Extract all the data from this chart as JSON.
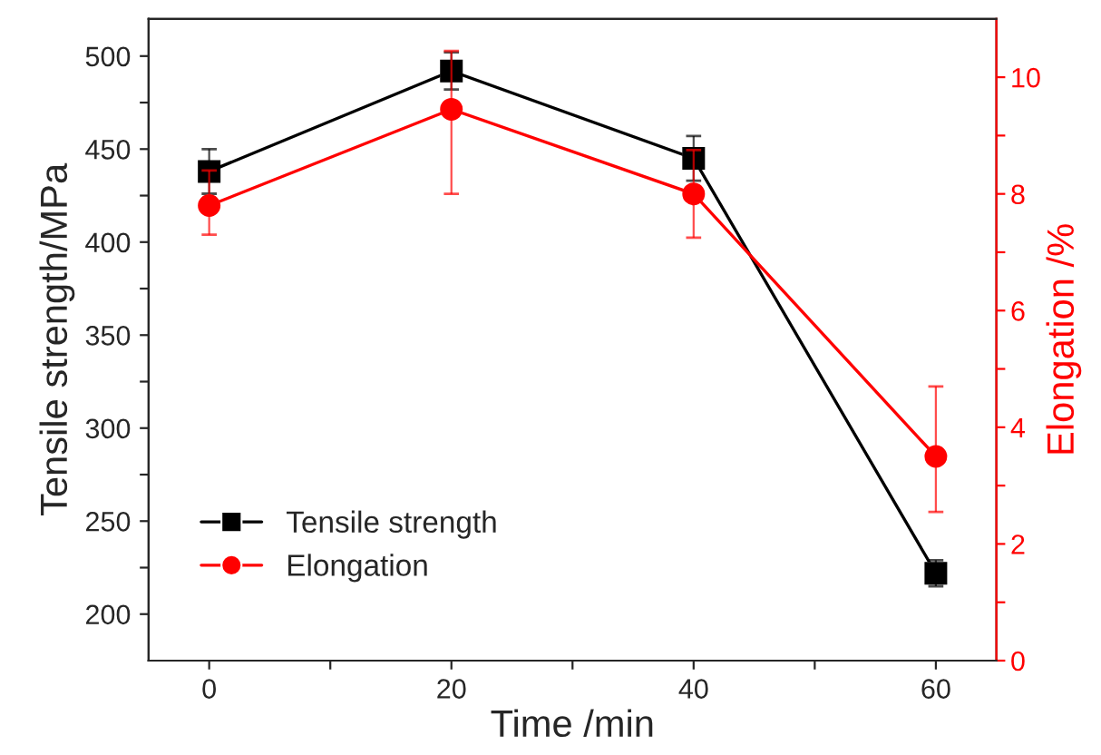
{
  "chart_data": {
    "type": "line",
    "xlabel": "Time /min",
    "ylabel": "Tensile strength/MPa",
    "y2label": "Elongation /%",
    "x": [
      0,
      20,
      40,
      60
    ],
    "series": [
      {
        "name": "Tensile strength",
        "color": "#000000",
        "marker": "square",
        "values": [
          438,
          492,
          445,
          222
        ],
        "errors": [
          12,
          10,
          12,
          7
        ]
      },
      {
        "name": "Elongation",
        "color": "#ff0000",
        "marker": "circle",
        "axis": "y2",
        "values": [
          7.8,
          9.45,
          8.0,
          3.5
        ],
        "errors": [
          [
            7.3,
            8.4
          ],
          [
            8.0,
            10.45
          ],
          [
            7.25,
            8.75
          ],
          [
            2.55,
            4.7
          ]
        ]
      }
    ],
    "xlim": [
      -5,
      65
    ],
    "xticks": [
      0,
      {
        "value": 10,
        "label": null
      },
      20,
      {
        "value": 30,
        "label": null
      },
      40,
      {
        "value": 50,
        "label": null
      },
      60
    ],
    "ylim": [
      175,
      520
    ],
    "yticks": [
      200,
      {
        "value": 225,
        "label": null
      },
      250,
      {
        "value": 275,
        "label": null
      },
      300,
      {
        "value": 325,
        "label": null
      },
      350,
      {
        "value": 375,
        "label": null
      },
      400,
      {
        "value": 425,
        "label": null
      },
      450,
      {
        "value": 475,
        "label": null
      },
      500
    ],
    "y2lim": [
      0,
      11
    ],
    "y2ticks": [
      0,
      {
        "value": 1,
        "label": null
      },
      2,
      {
        "value": 3,
        "label": null
      },
      4,
      {
        "value": 5,
        "label": null
      },
      6,
      {
        "value": 7,
        "label": null
      },
      8,
      {
        "value": 9,
        "label": null
      },
      10
    ],
    "legend": "bottom left",
    "grid": false,
    "line_style": "solid"
  }
}
